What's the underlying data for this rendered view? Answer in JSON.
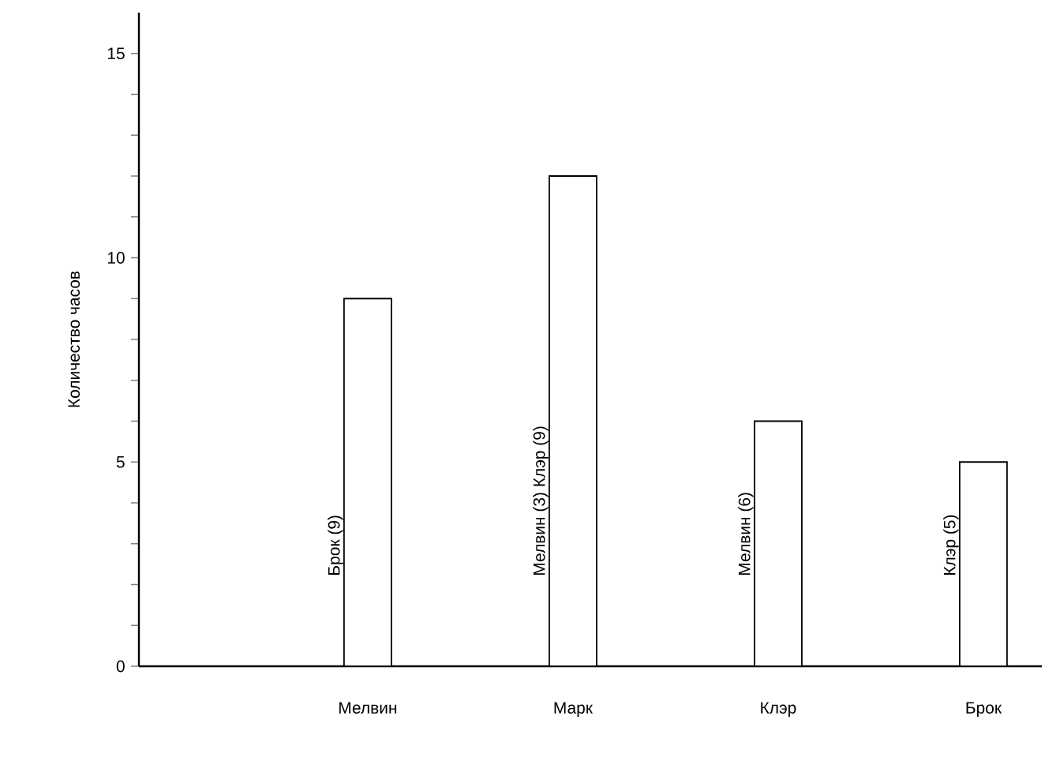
{
  "chart_data": {
    "type": "bar",
    "ylabel": "Количество часов",
    "categories": [
      "Мелвин",
      "Марк",
      "Клэр",
      "Брок"
    ],
    "values": [
      9,
      12,
      6,
      5
    ],
    "value_labels": [
      "Брок (9)",
      "Мелвин (3) Клэр (9)",
      "Мелвин (6)",
      "Клэр (5)"
    ],
    "color": "#ffffff",
    "ylim": [
      0,
      16
    ],
    "yticks": [
      0,
      {
        "value": 1,
        "label": null
      },
      {
        "value": 2,
        "label": null
      },
      {
        "value": 3,
        "label": null
      },
      {
        "value": 4,
        "label": null
      },
      5,
      {
        "value": 6,
        "label": null
      },
      {
        "value": 7,
        "label": null
      },
      {
        "value": 8,
        "label": null
      },
      {
        "value": 9,
        "label": null
      },
      10,
      {
        "value": 11,
        "label": null
      },
      {
        "value": 12,
        "label": null
      },
      {
        "value": 13,
        "label": null
      },
      {
        "value": 14,
        "label": null
      },
      15
    ]
  }
}
